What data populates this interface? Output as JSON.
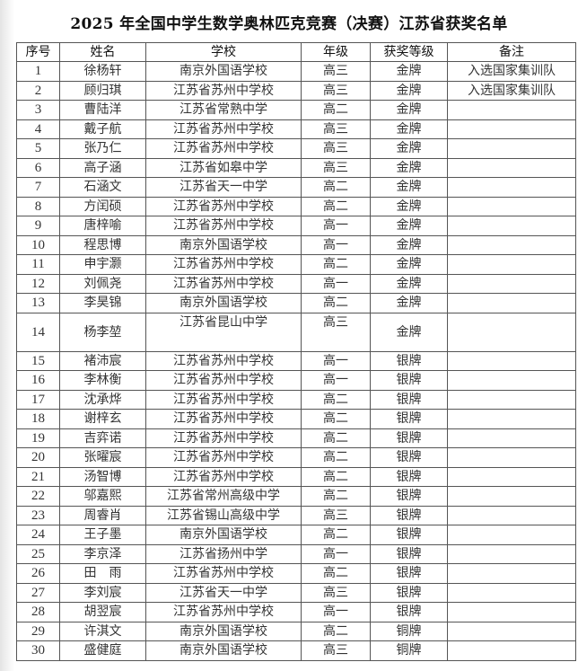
{
  "title": "2025 年全国中学生数学奥林匹克竞赛（决赛）江苏省获奖名单",
  "headers": [
    "序号",
    "姓名",
    "学校",
    "年级",
    "获奖等级",
    "备注"
  ],
  "rows": [
    [
      "1",
      "徐杨轩",
      "南京外国语学校",
      "高三",
      "金牌",
      "入选国家集训队"
    ],
    [
      "2",
      "顾归琪",
      "江苏省苏州中学校",
      "高三",
      "金牌",
      "入选国家集训队"
    ],
    [
      "3",
      "曹陆洋",
      "江苏省常熟中学",
      "高二",
      "金牌",
      ""
    ],
    [
      "4",
      "戴子航",
      "江苏省苏州中学校",
      "高三",
      "金牌",
      ""
    ],
    [
      "5",
      "张乃仁",
      "江苏省苏州中学校",
      "高三",
      "金牌",
      ""
    ],
    [
      "6",
      "高子涵",
      "江苏省如皋中学",
      "高三",
      "金牌",
      ""
    ],
    [
      "7",
      "石涵文",
      "江苏省天一中学",
      "高二",
      "金牌",
      ""
    ],
    [
      "8",
      "方闰硕",
      "江苏省苏州中学校",
      "高二",
      "金牌",
      ""
    ],
    [
      "9",
      "唐梓喻",
      "江苏省苏州中学校",
      "高一",
      "金牌",
      ""
    ],
    [
      "10",
      "程思博",
      "南京外国语学校",
      "高一",
      "金牌",
      ""
    ],
    [
      "11",
      "申宇灏",
      "江苏省苏州中学校",
      "高二",
      "金牌",
      ""
    ],
    [
      "12",
      "刘佩尧",
      "江苏省苏州中学校",
      "高一",
      "金牌",
      ""
    ],
    [
      "13",
      "李昊锦",
      "南京外国语学校",
      "高二",
      "金牌",
      ""
    ],
    [
      "14",
      "杨李堃",
      "江苏省昆山中学",
      "高三",
      "金牌",
      ""
    ],
    [
      "15",
      "褚沛宸",
      "江苏省苏州中学校",
      "高一",
      "银牌",
      ""
    ],
    [
      "16",
      "李林衡",
      "江苏省苏州中学校",
      "高一",
      "银牌",
      ""
    ],
    [
      "17",
      "沈承烨",
      "江苏省苏州中学校",
      "高二",
      "银牌",
      ""
    ],
    [
      "18",
      "谢梓玄",
      "江苏省苏州中学校",
      "高二",
      "银牌",
      ""
    ],
    [
      "19",
      "吉弈诺",
      "江苏省苏州中学校",
      "高二",
      "银牌",
      ""
    ],
    [
      "20",
      "张曜宸",
      "江苏省苏州中学校",
      "高二",
      "银牌",
      ""
    ],
    [
      "21",
      "汤智博",
      "江苏省苏州中学校",
      "高二",
      "银牌",
      ""
    ],
    [
      "22",
      "邬嘉熙",
      "江苏省常州高级中学",
      "高二",
      "银牌",
      ""
    ],
    [
      "23",
      "周睿肖",
      "江苏省锡山高级中学",
      "高三",
      "银牌",
      ""
    ],
    [
      "24",
      "王子墨",
      "南京外国语学校",
      "高二",
      "银牌",
      ""
    ],
    [
      "25",
      "李京泽",
      "江苏省扬州中学",
      "高一",
      "银牌",
      ""
    ],
    [
      "26",
      "田　雨",
      "江苏省苏州中学校",
      "高二",
      "银牌",
      ""
    ],
    [
      "27",
      "李刘宸",
      "江苏省天一中学",
      "高三",
      "银牌",
      ""
    ],
    [
      "28",
      "胡翌宸",
      "江苏省苏州中学校",
      "高一",
      "银牌",
      ""
    ],
    [
      "29",
      "许淇文",
      "南京外国语学校",
      "高二",
      "铜牌",
      ""
    ],
    [
      "30",
      "盛健庭",
      "南京外国语学校",
      "高三",
      "铜牌",
      ""
    ]
  ]
}
